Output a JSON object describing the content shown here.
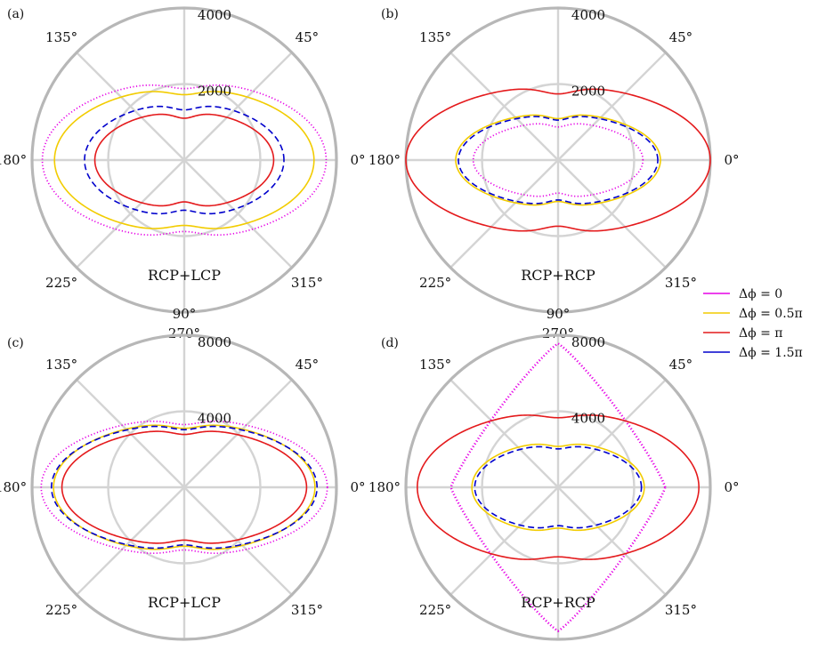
{
  "legend": [
    {
      "label": "Δϕ = 0",
      "color": "#e600e6",
      "dash": "dotted"
    },
    {
      "label": "Δϕ = 0.5π",
      "color": "#f2cc00",
      "dash": "solid"
    },
    {
      "label": "Δϕ = π",
      "color": "#e41a1c",
      "dash": "solid"
    },
    {
      "label": "Δϕ = 1.5π",
      "color": "#0000cc",
      "dash": "dashed"
    }
  ],
  "chart_data": [
    {
      "type": "polar-line",
      "panel": "(a)",
      "annotation": "RCP+LCP",
      "angle_ticks": [
        "0°",
        "45°",
        "90°",
        "135°",
        "180°",
        "225°",
        "270°",
        "315°"
      ],
      "radial_ticks": [
        2000,
        4000
      ],
      "rmax": 4000,
      "series": [
        {
          "name": "Δϕ = 0",
          "r0": 3730,
          "r90": 2080,
          "notch": 200
        },
        {
          "name": "Δϕ = 0.5π",
          "r0": 3410,
          "r90": 1900,
          "notch": 180
        },
        {
          "name": "Δϕ = π",
          "r0": 2350,
          "r90": 1280,
          "notch": 180
        },
        {
          "name": "Δϕ = 1.5π",
          "r0": 2620,
          "r90": 1500,
          "notch": 180
        }
      ]
    },
    {
      "type": "polar-line",
      "panel": "(b)",
      "annotation": "RCP+RCP",
      "angle_ticks": [
        "0°",
        "45°",
        "90°",
        "135°",
        "180°",
        "225°",
        "270°",
        "315°"
      ],
      "radial_ticks": [
        2000,
        4000
      ],
      "rmax": 4000,
      "series": [
        {
          "name": "Δϕ = 0",
          "r0": 2230,
          "r90": 1000,
          "notch": 130
        },
        {
          "name": "Δϕ = 0.5π",
          "r0": 2690,
          "r90": 1240,
          "notch": 150
        },
        {
          "name": "Δϕ = π",
          "r0": 4000,
          "r90": 1960,
          "notch": 220
        },
        {
          "name": "Δϕ = 1.5π",
          "r0": 2620,
          "r90": 1200,
          "notch": 150
        }
      ]
    },
    {
      "type": "polar-line",
      "panel": "(c)",
      "annotation": "RCP+LCP",
      "angle_ticks": [
        "0°",
        "45°",
        "90°",
        "135°",
        "180°",
        "225°",
        "270°",
        "315°"
      ],
      "radial_ticks": [
        4000,
        8000
      ],
      "rmax": 8000,
      "series": [
        {
          "name": "Δϕ = 0",
          "r0": 7520,
          "r90": 3630,
          "notch": 330
        },
        {
          "name": "Δϕ = 0.5π",
          "r0": 6870,
          "r90": 3420,
          "notch": 320
        },
        {
          "name": "Δϕ = π",
          "r0": 6430,
          "r90": 3080,
          "notch": 300
        },
        {
          "name": "Δϕ = 1.5π",
          "r0": 6980,
          "r90": 3350,
          "notch": 320
        }
      ]
    },
    {
      "type": "polar-line",
      "panel": "(d)",
      "annotation": "RCP+RCP",
      "angle_ticks": [
        "0°",
        "45°",
        "90°",
        "135°",
        "180°",
        "225°",
        "270°",
        "315°"
      ],
      "radial_ticks": [
        4000,
        8000
      ],
      "rmax": 8000,
      "series": [
        {
          "name": "Δϕ = 0",
          "shape": "diamond",
          "r0": 5630,
          "r90": 7560
        },
        {
          "name": "Δϕ = 0.5π",
          "r0": 4530,
          "r90": 2380,
          "notch": 230
        },
        {
          "name": "Δϕ = π",
          "r0": 7400,
          "r90": 3980,
          "notch": 320
        },
        {
          "name": "Δϕ = 1.5π",
          "r0": 4380,
          "r90": 2240,
          "notch": 220
        }
      ]
    }
  ]
}
